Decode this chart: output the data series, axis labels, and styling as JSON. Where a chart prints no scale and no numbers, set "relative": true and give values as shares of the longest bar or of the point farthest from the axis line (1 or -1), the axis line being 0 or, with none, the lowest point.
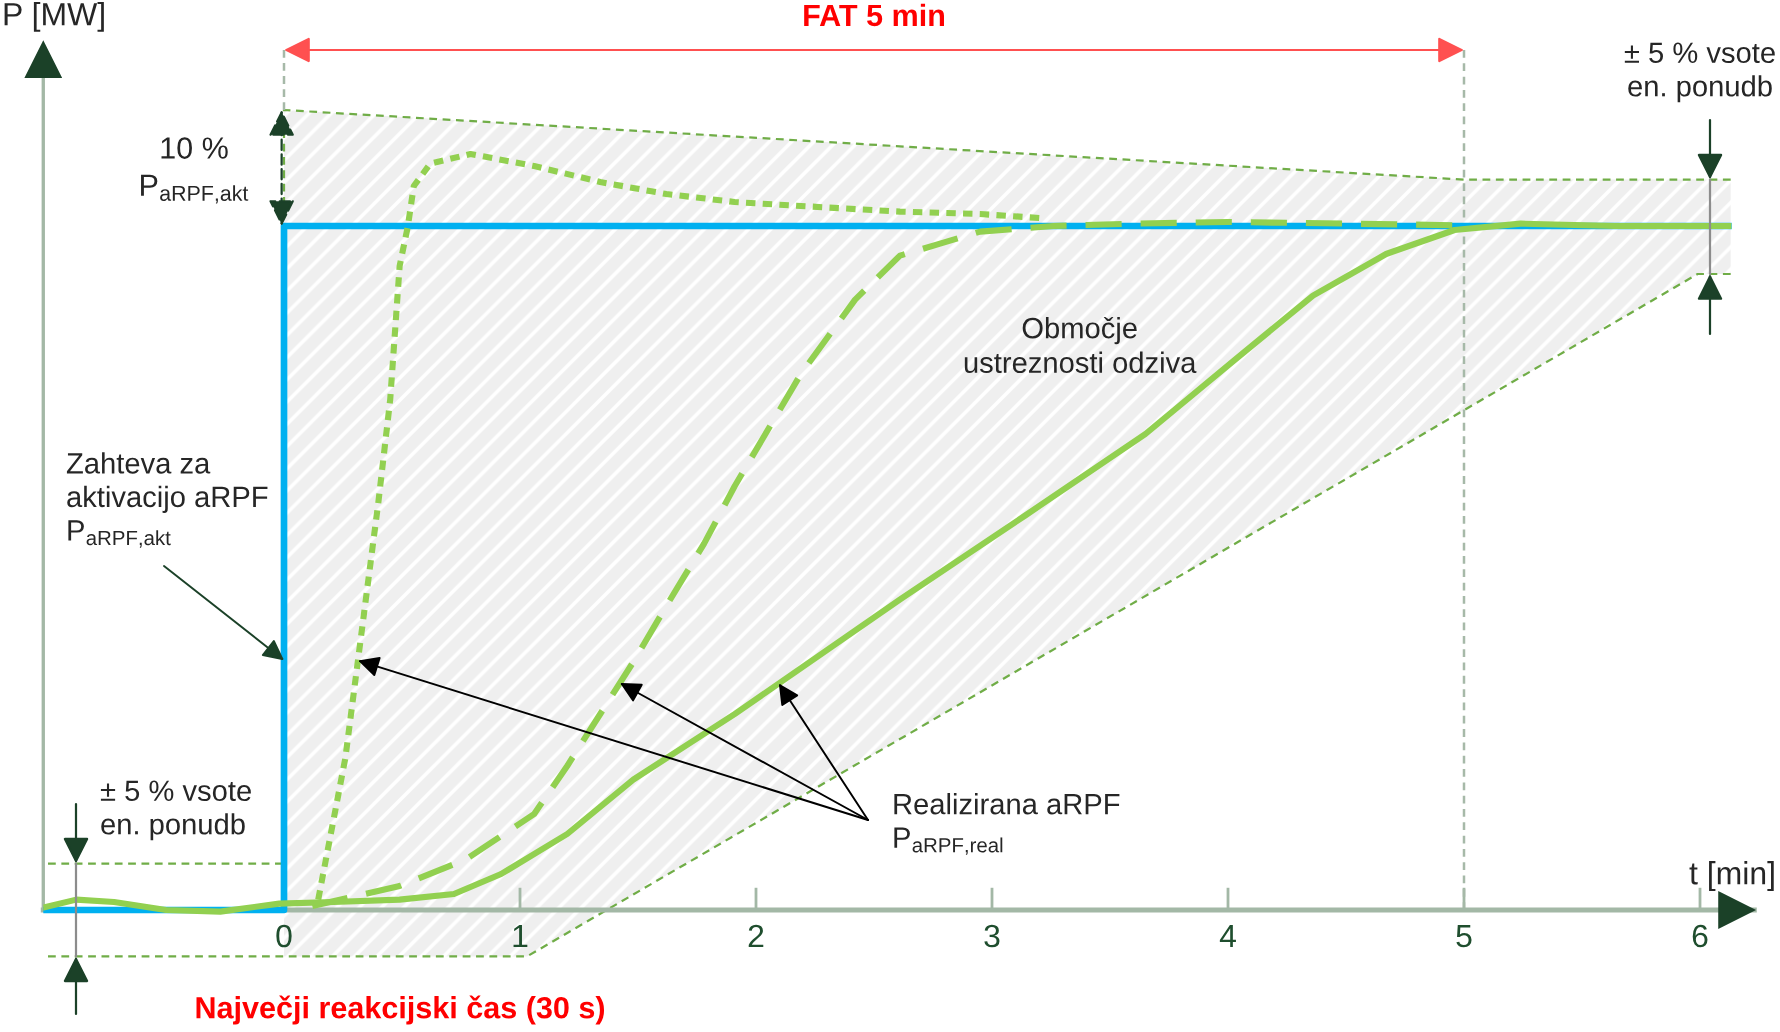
{
  "chart_data": {
    "type": "line",
    "relative": true,
    "xlabel": "t [min]",
    "ylabel": "P [MW]",
    "xlim": [
      -1.02,
      6.23
    ],
    "xticks": [
      0,
      1,
      2,
      3,
      4,
      5,
      6
    ],
    "series": [
      {
        "type": "area",
        "name": "Območje\nustreznosti odziva",
        "color": "#efefef",
        "x": [
          0,
          1.03,
          5.99,
          6.13,
          6.13,
          5,
          0
        ],
        "values": [
          -0.058,
          -0.058,
          0.795,
          0.795,
          0.913,
          0.913,
          1.0
        ]
      },
      {
        "color": "#70ad47",
        "line_style": "dashed",
        "x": [
          -1.0,
          0,
          0,
          5,
          6.13
        ],
        "values": [
          0.058,
          0.058,
          1.0,
          0.913,
          0.913
        ]
      },
      {
        "color": "#70ad47",
        "line_style": "dashed",
        "x": [
          -1.0,
          1.03,
          5.99,
          6.13
        ],
        "values": [
          -0.058,
          -0.058,
          0.795,
          0.795
        ]
      },
      {
        "type": "step",
        "name": "Zahteva za\naktivacijo aRPF\nP$_{aRPF,akt}$",
        "color": "#00b0f0",
        "x": [
          -1.02,
          0,
          6.12
        ],
        "values": [
          0,
          0.855,
          0.855
        ]
      },
      {
        "color": "#92d050",
        "line_style": "dotted",
        "x": [
          0.145,
          0.26,
          0.4,
          0.45,
          0.49,
          0.525,
          0.55,
          0.62,
          0.79,
          1.06,
          1.34,
          1.62,
          1.91,
          2.19,
          2.61,
          2.95,
          3.2
        ],
        "values": [
          0.013,
          0.19,
          0.51,
          0.638,
          0.805,
          0.855,
          0.905,
          0.933,
          0.945,
          0.93,
          0.91,
          0.895,
          0.885,
          0.88,
          0.873,
          0.87,
          0.865
        ]
      },
      {
        "color": "#92d050",
        "line_style": "dashed",
        "x": [
          0.12,
          0.49,
          0.77,
          1.06,
          1.2,
          1.34,
          1.48,
          1.62,
          1.78,
          1.91,
          2.19,
          2.42,
          2.61,
          2.78,
          2.95,
          3.26,
          3.6,
          4.0,
          4.5,
          4.95
        ],
        "values": [
          0.005,
          0.03,
          0.063,
          0.12,
          0.18,
          0.245,
          0.31,
          0.38,
          0.458,
          0.53,
          0.67,
          0.763,
          0.818,
          0.833,
          0.848,
          0.855,
          0.858,
          0.86,
          0.858,
          0.856
        ]
      },
      {
        "color": "#92d050",
        "line_style": "solid",
        "x": [
          -1.02,
          -0.88,
          -0.72,
          -0.5,
          -0.27,
          -0.02,
          0.21,
          0.49,
          0.72,
          0.92,
          1.2,
          1.48,
          1.91,
          2.61,
          3.14,
          3.65,
          4.03,
          4.36,
          4.67,
          4.96,
          5.24,
          5.64,
          6.12
        ],
        "values": [
          0.003,
          0.013,
          0.01,
          0,
          -0.002,
          0.008,
          0.01,
          0.013,
          0.02,
          0.045,
          0.095,
          0.163,
          0.245,
          0.388,
          0.493,
          0.595,
          0.688,
          0.768,
          0.82,
          0.85,
          0.858,
          0.855,
          0.855
        ]
      }
    ],
    "ref_lines": [
      {
        "axis": "x",
        "value": 5,
        "color": "#a6b9a8",
        "line_style": "dashed"
      }
    ],
    "annotations": [
      "FAT 5 min",
      "10 %\nP$_{aRPF,akt}$",
      "± 5 % vsote\nen. ponudb",
      "± 5 % vsote\nen. ponudb",
      "Največji reakcijski čas (30 s)",
      "Realizirana aRPF\nP$_{aRPF,real}$"
    ]
  }
}
